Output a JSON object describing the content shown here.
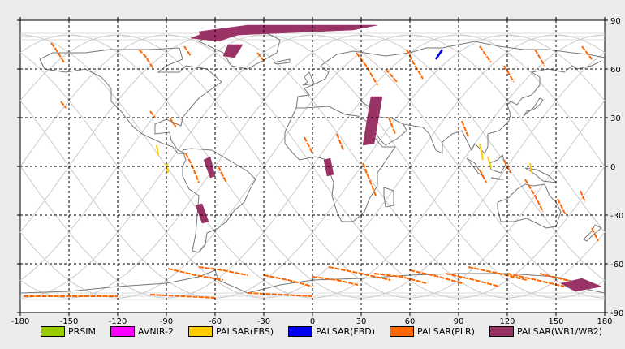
{
  "chart_data": {
    "type": "map",
    "projection": "equirectangular",
    "xlim": [
      -180,
      180
    ],
    "ylim": [
      -90,
      90
    ],
    "x_ticks": [
      -180,
      -150,
      -120,
      -90,
      -60,
      -30,
      0,
      30,
      60,
      90,
      120,
      150,
      180
    ],
    "y_ticks": [
      90,
      60,
      30,
      0,
      -30,
      -60,
      -90
    ],
    "grid": true,
    "legend_position": "bottom",
    "legend": [
      {
        "name": "PRSIM",
        "color": "#99cc00"
      },
      {
        "name": "AVNIR-2",
        "color": "#ff00ff"
      },
      {
        "name": "PALSAR(FBS)",
        "color": "#ffcc00"
      },
      {
        "name": "PALSAR(FBD)",
        "color": "#0000ee"
      },
      {
        "name": "PALSAR(PLR)",
        "color": "#ff6600"
      },
      {
        "name": "PALSAR(WB1/WB2)",
        "color": "#993366"
      }
    ],
    "wb_swaths": [
      [
        [
          -70,
          83
        ],
        [
          -40,
          87
        ],
        [
          40,
          87
        ],
        [
          25,
          84
        ],
        [
          -45,
          81
        ],
        [
          -68,
          78
        ]
      ],
      [
        [
          -75,
          79
        ],
        [
          -62,
          84
        ],
        [
          -40,
          83
        ],
        [
          -58,
          77
        ]
      ],
      [
        [
          -55,
          68
        ],
        [
          -52,
          75
        ],
        [
          -43,
          75
        ],
        [
          -48,
          67
        ]
      ],
      [
        [
          -67,
          4
        ],
        [
          -63,
          6
        ],
        [
          -60,
          -6
        ],
        [
          -63,
          -7
        ]
      ],
      [
        [
          -72,
          -24
        ],
        [
          -68,
          -23
        ],
        [
          -64,
          -34
        ],
        [
          -68,
          -35
        ]
      ],
      [
        [
          36,
          43
        ],
        [
          43,
          43
        ],
        [
          38,
          14
        ],
        [
          31,
          13
        ]
      ],
      [
        [
          7,
          4
        ],
        [
          11,
          5
        ],
        [
          13,
          -5
        ],
        [
          9,
          -6
        ]
      ],
      [
        [
          153,
          -72
        ],
        [
          166,
          -69
        ],
        [
          178,
          -74
        ],
        [
          162,
          -77
        ]
      ]
    ],
    "fbd_segments": [
      [
        [
          76,
          66
        ],
        [
          80,
          72
        ]
      ]
    ],
    "fbs_segments": [
      [
        [
          -96,
          13
        ],
        [
          -95,
          7
        ]
      ],
      [
        [
          -90,
          2
        ],
        [
          -89,
          -4
        ]
      ],
      [
        [
          103,
          14
        ],
        [
          105,
          4
        ]
      ],
      [
        [
          108,
          6
        ],
        [
          110,
          -1
        ]
      ],
      [
        [
          134,
          2
        ],
        [
          135,
          -4
        ]
      ]
    ],
    "plr_segments": [
      [
        [
          -161,
          76
        ],
        [
          -158,
          72
        ],
        [
          -153,
          64
        ]
      ],
      [
        [
          -107,
          72
        ],
        [
          -103,
          68
        ],
        [
          -98,
          60
        ]
      ],
      [
        [
          -79,
          74
        ],
        [
          -75,
          68
        ]
      ],
      [
        [
          -34,
          70
        ],
        [
          -30,
          65
        ]
      ],
      [
        [
          27,
          70
        ],
        [
          33,
          62
        ],
        [
          40,
          50
        ]
      ],
      [
        [
          45,
          60
        ],
        [
          52,
          52
        ]
      ],
      [
        [
          58,
          72
        ],
        [
          62,
          64
        ],
        [
          68,
          54
        ]
      ],
      [
        [
          103,
          74
        ],
        [
          110,
          64
        ]
      ],
      [
        [
          118,
          62
        ],
        [
          124,
          52
        ]
      ],
      [
        [
          137,
          72
        ],
        [
          143,
          62
        ]
      ],
      [
        [
          166,
          74
        ],
        [
          172,
          66
        ]
      ],
      [
        [
          -155,
          40
        ],
        [
          -152,
          36
        ]
      ],
      [
        [
          -100,
          34
        ],
        [
          -97,
          30
        ]
      ],
      [
        [
          -88,
          30
        ],
        [
          -84,
          24
        ]
      ],
      [
        [
          -78,
          8
        ],
        [
          -74,
          0
        ],
        [
          -70,
          -10
        ]
      ],
      [
        [
          -58,
          0
        ],
        [
          -53,
          -10
        ]
      ],
      [
        [
          -5,
          18
        ],
        [
          0,
          8
        ]
      ],
      [
        [
          15,
          20
        ],
        [
          19,
          10
        ]
      ],
      [
        [
          31,
          2
        ],
        [
          35,
          -8
        ],
        [
          39,
          -18
        ]
      ],
      [
        [
          47,
          30
        ],
        [
          51,
          20
        ]
      ],
      [
        [
          92,
          28
        ],
        [
          96,
          18
        ]
      ],
      [
        [
          103,
          -2
        ],
        [
          107,
          -10
        ]
      ],
      [
        [
          118,
          4
        ],
        [
          122,
          -4
        ]
      ],
      [
        [
          131,
          -8
        ],
        [
          137,
          -18
        ],
        [
          142,
          -28
        ]
      ],
      [
        [
          151,
          -20
        ],
        [
          156,
          -30
        ]
      ],
      [
        [
          172,
          -38
        ],
        [
          176,
          -46
        ]
      ],
      [
        [
          165,
          -15
        ],
        [
          168,
          -22
        ]
      ],
      [
        [
          -89,
          -63
        ],
        [
          -72,
          -67
        ],
        [
          -55,
          -70
        ]
      ],
      [
        [
          -70,
          -62
        ],
        [
          -55,
          -64
        ],
        [
          -40,
          -67
        ]
      ],
      [
        [
          -30,
          -67
        ],
        [
          -15,
          -70
        ],
        [
          0,
          -74
        ]
      ],
      [
        [
          0,
          -68
        ],
        [
          15,
          -70
        ],
        [
          28,
          -73
        ]
      ],
      [
        [
          10,
          -62
        ],
        [
          30,
          -66
        ],
        [
          48,
          -70
        ]
      ],
      [
        [
          38,
          -66
        ],
        [
          55,
          -68
        ],
        [
          70,
          -72
        ]
      ],
      [
        [
          60,
          -64
        ],
        [
          78,
          -68
        ],
        [
          92,
          -72
        ]
      ],
      [
        [
          82,
          -66
        ],
        [
          100,
          -70
        ],
        [
          115,
          -74
        ]
      ],
      [
        [
          96,
          -62
        ],
        [
          115,
          -66
        ],
        [
          132,
          -70
        ]
      ],
      [
        [
          120,
          -66
        ],
        [
          138,
          -70
        ],
        [
          155,
          -74
        ]
      ],
      [
        [
          140,
          -66
        ],
        [
          156,
          -70
        ],
        [
          170,
          -73
        ]
      ],
      [
        [
          -178,
          -80
        ],
        [
          -150,
          -80
        ],
        [
          -120,
          -80
        ]
      ],
      [
        [
          -100,
          -79
        ],
        [
          -80,
          -80
        ],
        [
          -60,
          -81
        ]
      ],
      [
        [
          -40,
          -78
        ],
        [
          -20,
          -79
        ],
        [
          0,
          -80
        ]
      ]
    ]
  },
  "legend_labels": [
    "PRSIM",
    "AVNIR-2",
    "PALSAR(FBS)",
    "PALSAR(FBD)",
    "PALSAR(PLR)",
    "PALSAR(WB1/WB2)"
  ]
}
